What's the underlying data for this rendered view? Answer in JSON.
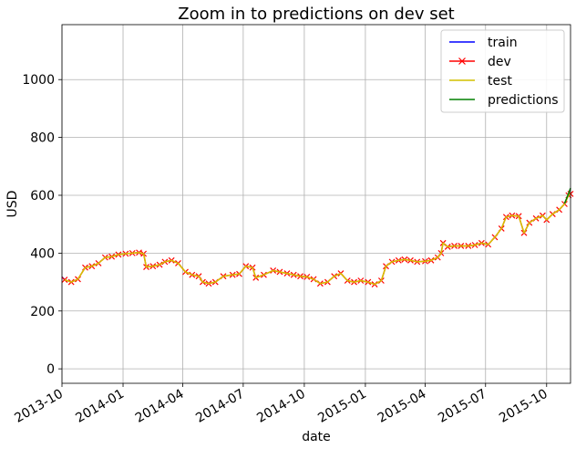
{
  "chart_data": {
    "type": "line",
    "title": "Zoom in to predictions on dev set",
    "xlabel": "date",
    "ylabel": "USD",
    "x_range": [
      "2013-10-01",
      "2015-11-06"
    ],
    "y_range": [
      -50,
      1190
    ],
    "x_ticks": [
      "2013-10",
      "2014-01",
      "2014-04",
      "2014-07",
      "2014-10",
      "2015-01",
      "2015-04",
      "2015-07",
      "2015-10"
    ],
    "y_ticks": [
      0,
      200,
      400,
      600,
      800,
      1000
    ],
    "grid": true,
    "legend": {
      "placement": "top-right"
    },
    "series": [
      {
        "name": "train",
        "color": "#0000ff",
        "marker": "none",
        "points": [
          [
            "2013-10-01",
            318
          ],
          [
            "2013-10-05",
            308
          ]
        ]
      },
      {
        "name": "dev",
        "color": "#ff0000",
        "marker": "x",
        "points": [
          [
            "2013-10-05",
            308
          ],
          [
            "2013-10-15",
            300
          ],
          [
            "2013-10-25",
            310
          ],
          [
            "2013-11-05",
            350
          ],
          [
            "2013-11-15",
            355
          ],
          [
            "2013-11-25",
            365
          ],
          [
            "2013-12-05",
            385
          ],
          [
            "2013-12-15",
            388
          ],
          [
            "2013-12-25",
            395
          ],
          [
            "2014-01-05",
            398
          ],
          [
            "2014-01-15",
            400
          ],
          [
            "2014-01-25",
            402
          ],
          [
            "2014-02-01",
            398
          ],
          [
            "2014-02-05",
            352
          ],
          [
            "2014-02-15",
            355
          ],
          [
            "2014-02-25",
            360
          ],
          [
            "2014-03-05",
            370
          ],
          [
            "2014-03-15",
            375
          ],
          [
            "2014-03-25",
            365
          ],
          [
            "2014-04-05",
            335
          ],
          [
            "2014-04-15",
            325
          ],
          [
            "2014-04-25",
            320
          ],
          [
            "2014-05-01",
            300
          ],
          [
            "2014-05-10",
            295
          ],
          [
            "2014-05-20",
            300
          ],
          [
            "2014-06-01",
            320
          ],
          [
            "2014-06-15",
            325
          ],
          [
            "2014-06-25",
            328
          ],
          [
            "2014-07-05",
            355
          ],
          [
            "2014-07-15",
            350
          ],
          [
            "2014-07-20",
            315
          ],
          [
            "2014-08-01",
            325
          ],
          [
            "2014-08-15",
            340
          ],
          [
            "2014-08-25",
            335
          ],
          [
            "2014-09-05",
            330
          ],
          [
            "2014-09-15",
            325
          ],
          [
            "2014-09-25",
            320
          ],
          [
            "2014-10-05",
            318
          ],
          [
            "2014-10-15",
            310
          ],
          [
            "2014-10-25",
            295
          ],
          [
            "2014-11-05",
            300
          ],
          [
            "2014-11-15",
            320
          ],
          [
            "2014-11-25",
            330
          ],
          [
            "2014-12-05",
            305
          ],
          [
            "2014-12-15",
            300
          ],
          [
            "2014-12-25",
            305
          ],
          [
            "2015-01-05",
            300
          ],
          [
            "2015-01-15",
            292
          ],
          [
            "2015-01-25",
            305
          ],
          [
            "2015-02-01",
            355
          ],
          [
            "2015-02-10",
            370
          ],
          [
            "2015-02-20",
            375
          ],
          [
            "2015-03-01",
            378
          ],
          [
            "2015-03-10",
            375
          ],
          [
            "2015-03-20",
            370
          ],
          [
            "2015-04-01",
            372
          ],
          [
            "2015-04-10",
            375
          ],
          [
            "2015-04-20",
            385
          ],
          [
            "2015-04-25",
            400
          ],
          [
            "2015-04-28",
            435
          ],
          [
            "2015-05-05",
            422
          ],
          [
            "2015-05-15",
            425
          ],
          [
            "2015-05-25",
            425
          ],
          [
            "2015-06-05",
            425
          ],
          [
            "2015-06-15",
            428
          ],
          [
            "2015-06-25",
            435
          ],
          [
            "2015-07-05",
            430
          ],
          [
            "2015-07-15",
            455
          ],
          [
            "2015-07-25",
            485
          ],
          [
            "2015-08-01",
            525
          ],
          [
            "2015-08-10",
            530
          ],
          [
            "2015-08-20",
            528
          ],
          [
            "2015-08-28",
            470
          ],
          [
            "2015-09-05",
            505
          ],
          [
            "2015-09-15",
            520
          ],
          [
            "2015-09-25",
            530
          ],
          [
            "2015-10-01",
            515
          ],
          [
            "2015-10-10",
            535
          ],
          [
            "2015-10-20",
            550
          ],
          [
            "2015-10-28",
            570
          ],
          [
            "2015-11-03",
            600
          ],
          [
            "2015-11-06",
            605
          ]
        ]
      },
      {
        "name": "test",
        "color": "#d4c200",
        "marker": "none",
        "points": [
          [
            "2013-10-05",
            308
          ],
          [
            "2013-10-15",
            300
          ],
          [
            "2013-10-25",
            310
          ],
          [
            "2013-11-05",
            350
          ],
          [
            "2013-11-15",
            355
          ],
          [
            "2013-11-25",
            365
          ],
          [
            "2013-12-05",
            385
          ],
          [
            "2013-12-15",
            388
          ],
          [
            "2013-12-25",
            395
          ],
          [
            "2014-01-05",
            398
          ],
          [
            "2014-01-15",
            400
          ],
          [
            "2014-01-25",
            402
          ],
          [
            "2014-02-01",
            398
          ],
          [
            "2014-02-05",
            352
          ],
          [
            "2014-02-15",
            355
          ],
          [
            "2014-02-25",
            360
          ],
          [
            "2014-03-05",
            370
          ],
          [
            "2014-03-15",
            375
          ],
          [
            "2014-03-25",
            365
          ],
          [
            "2014-04-05",
            335
          ],
          [
            "2014-04-15",
            325
          ],
          [
            "2014-04-25",
            320
          ],
          [
            "2014-05-01",
            300
          ],
          [
            "2014-05-10",
            295
          ],
          [
            "2014-05-20",
            300
          ],
          [
            "2014-06-01",
            320
          ],
          [
            "2014-06-15",
            325
          ],
          [
            "2014-06-25",
            328
          ],
          [
            "2014-07-05",
            355
          ],
          [
            "2014-07-15",
            350
          ],
          [
            "2014-07-20",
            315
          ],
          [
            "2014-08-01",
            325
          ],
          [
            "2014-08-15",
            340
          ],
          [
            "2014-08-25",
            335
          ],
          [
            "2014-09-05",
            330
          ],
          [
            "2014-09-15",
            325
          ],
          [
            "2014-09-25",
            320
          ],
          [
            "2014-10-05",
            318
          ],
          [
            "2014-10-15",
            310
          ],
          [
            "2014-10-25",
            295
          ],
          [
            "2014-11-05",
            300
          ],
          [
            "2014-11-15",
            320
          ],
          [
            "2014-11-25",
            330
          ],
          [
            "2014-12-05",
            305
          ],
          [
            "2014-12-15",
            300
          ],
          [
            "2014-12-25",
            305
          ],
          [
            "2015-01-05",
            300
          ],
          [
            "2015-01-15",
            292
          ],
          [
            "2015-01-25",
            305
          ],
          [
            "2015-02-01",
            355
          ],
          [
            "2015-02-10",
            370
          ],
          [
            "2015-02-20",
            375
          ],
          [
            "2015-03-01",
            378
          ],
          [
            "2015-03-10",
            375
          ],
          [
            "2015-03-20",
            370
          ],
          [
            "2015-04-01",
            372
          ],
          [
            "2015-04-10",
            375
          ],
          [
            "2015-04-20",
            385
          ],
          [
            "2015-04-25",
            400
          ],
          [
            "2015-04-28",
            435
          ],
          [
            "2015-05-05",
            422
          ],
          [
            "2015-05-15",
            425
          ],
          [
            "2015-05-25",
            425
          ],
          [
            "2015-06-05",
            425
          ],
          [
            "2015-06-15",
            428
          ],
          [
            "2015-06-25",
            435
          ],
          [
            "2015-07-05",
            430
          ],
          [
            "2015-07-15",
            455
          ],
          [
            "2015-07-25",
            485
          ],
          [
            "2015-08-01",
            525
          ],
          [
            "2015-08-10",
            530
          ],
          [
            "2015-08-20",
            528
          ],
          [
            "2015-08-28",
            470
          ],
          [
            "2015-09-05",
            505
          ],
          [
            "2015-09-15",
            520
          ],
          [
            "2015-09-25",
            530
          ],
          [
            "2015-10-01",
            515
          ],
          [
            "2015-10-10",
            535
          ],
          [
            "2015-10-20",
            550
          ],
          [
            "2015-10-28",
            570
          ],
          [
            "2015-11-03",
            600
          ],
          [
            "2015-11-06",
            605
          ]
        ]
      },
      {
        "name": "predictions",
        "color": "#008000",
        "marker": "none",
        "points": [
          [
            "2015-10-28",
            572
          ],
          [
            "2015-11-02",
            600
          ],
          [
            "2015-11-06",
            625
          ]
        ]
      }
    ]
  }
}
